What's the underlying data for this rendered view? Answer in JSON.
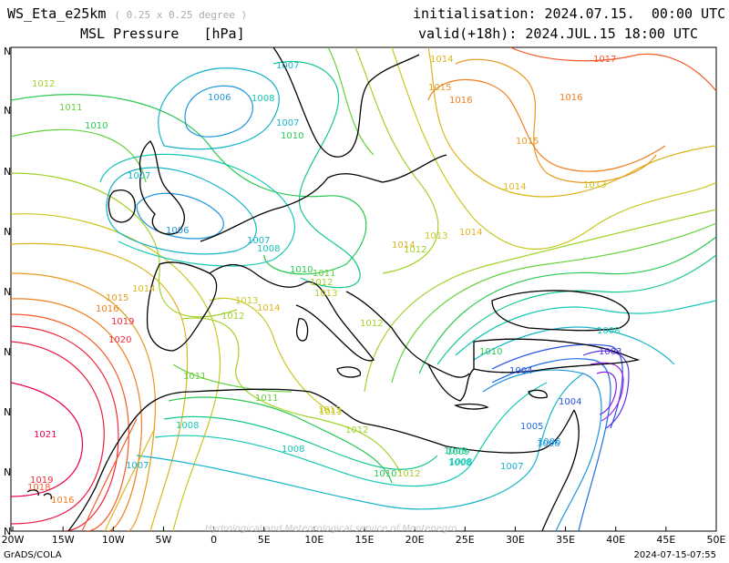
{
  "header": {
    "model": "WS_Eta_e25km",
    "resolution": "( 0.25 x 0.25 degree )",
    "field": "MSL Pressure",
    "unit": "[hPa]",
    "init_label": "initialisation:",
    "init_value": "2024.07.15.  00:00 UTC",
    "valid_label": "valid(+18h):",
    "valid_value": "2024.JUL.15 18:00 UTC"
  },
  "axes": {
    "lon_ticks": [
      "20W",
      "15W",
      "10W",
      "5W",
      "0",
      "5E",
      "10E",
      "15E",
      "20E",
      "25E",
      "30E",
      "35E",
      "40E",
      "45E",
      "50E"
    ],
    "lat_ticks": [
      "N",
      "N",
      "N",
      "N",
      "N",
      "N",
      "N",
      "N",
      "N",
      "N"
    ]
  },
  "footer": {
    "left": "GrADS/COLA",
    "right": "2024-07-15-07:55",
    "watermark": "Hydrological and Meteorological service of Montenegro"
  },
  "colors": {
    "c1021": "#e8004c",
    "c1019": "#f0283c",
    "c1017": "#f55a28",
    "c1016": "#f07d1e",
    "c1015": "#e69a1e",
    "c1014": "#dcb41e",
    "c1013": "#c8c81e",
    "c1012": "#a0d228",
    "c1011": "#64d23c",
    "c1010": "#28c850",
    "c1009": "#14c88c",
    "c1008": "#14c8b4",
    "c1007": "#14b4c8",
    "c1006": "#1e96dc",
    "c1005": "#1e6ee6",
    "c1004": "#2850e6",
    "c1003": "#5a32e6",
    "low": "#a01ee6",
    "coast": "#000000"
  },
  "contour_labels": [
    {
      "t": "1012",
      "c": "c1012"
    },
    {
      "t": "1011",
      "c": "c1011"
    },
    {
      "t": "1010",
      "c": "c1010"
    },
    {
      "t": "1007",
      "c": "c1007"
    },
    {
      "t": "1006",
      "c": "c1006"
    },
    {
      "t": "1007",
      "c": "c1007"
    },
    {
      "t": "1008",
      "c": "c1008"
    },
    {
      "t": "1007",
      "c": "c1007"
    },
    {
      "t": "1010",
      "c": "c1010"
    },
    {
      "t": "1014",
      "c": "c1014"
    },
    {
      "t": "1015",
      "c": "c1015"
    },
    {
      "t": "1016",
      "c": "c1016"
    },
    {
      "t": "1017",
      "c": "c1017"
    },
    {
      "t": "1016",
      "c": "c1016"
    },
    {
      "t": "1015",
      "c": "c1015"
    },
    {
      "t": "1014",
      "c": "c1014"
    },
    {
      "t": "1013",
      "c": "c1013"
    },
    {
      "t": "1006",
      "c": "c1006"
    },
    {
      "t": "1007",
      "c": "c1007"
    },
    {
      "t": "1008",
      "c": "c1008"
    },
    {
      "t": "1014",
      "c": "c1014"
    },
    {
      "t": "1013",
      "c": "c1013"
    },
    {
      "t": "1012",
      "c": "c1012"
    },
    {
      "t": "1010",
      "c": "c1010"
    },
    {
      "t": "1011",
      "c": "c1011"
    },
    {
      "t": "1012",
      "c": "c1012"
    },
    {
      "t": "1013",
      "c": "c1013"
    },
    {
      "t": "1014",
      "c": "c1014"
    },
    {
      "t": "1015",
      "c": "c1015"
    },
    {
      "t": "1016",
      "c": "c1016"
    },
    {
      "t": "1019",
      "c": "c1019"
    },
    {
      "t": "1020",
      "c": "c1019"
    },
    {
      "t": "1013",
      "c": "c1013"
    },
    {
      "t": "1012",
      "c": "c1012"
    },
    {
      "t": "1014",
      "c": "c1014"
    },
    {
      "t": "1011",
      "c": "c1011"
    },
    {
      "t": "1011",
      "c": "c1011"
    },
    {
      "t": "1012",
      "c": "c1012"
    },
    {
      "t": "1013",
      "c": "c1013"
    },
    {
      "t": "1012",
      "c": "c1012"
    },
    {
      "t": "1008",
      "c": "c1008"
    },
    {
      "t": "1008",
      "c": "c1008"
    },
    {
      "t": "1007",
      "c": "c1007"
    },
    {
      "t": "1012",
      "c": "c1012"
    },
    {
      "t": "1010",
      "c": "c1010"
    },
    {
      "t": "1009",
      "c": "c1009"
    },
    {
      "t": "1008",
      "c": "c1008"
    },
    {
      "t": "1007",
      "c": "c1007"
    },
    {
      "t": "1010",
      "c": "c1010"
    },
    {
      "t": "1004",
      "c": "c1004"
    },
    {
      "t": "1004",
      "c": "c1004"
    },
    {
      "t": "1005",
      "c": "c1005"
    },
    {
      "t": "1006",
      "c": "c1006"
    },
    {
      "t": "1003",
      "c": "c1003"
    },
    {
      "t": "1008",
      "c": "c1008"
    },
    {
      "t": "1021",
      "c": "c1021"
    },
    {
      "t": "1019",
      "c": "c1019"
    },
    {
      "t": "1018",
      "c": "c1017"
    },
    {
      "t": "1016",
      "c": "c1016"
    },
    {
      "t": "1013",
      "c": "c1013"
    },
    {
      "t": "1014",
      "c": "c1014"
    },
    {
      "t": "1009",
      "c": "c1009"
    },
    {
      "t": "1008",
      "c": "c1008"
    },
    {
      "t": "1006",
      "c": "c1006"
    }
  ]
}
